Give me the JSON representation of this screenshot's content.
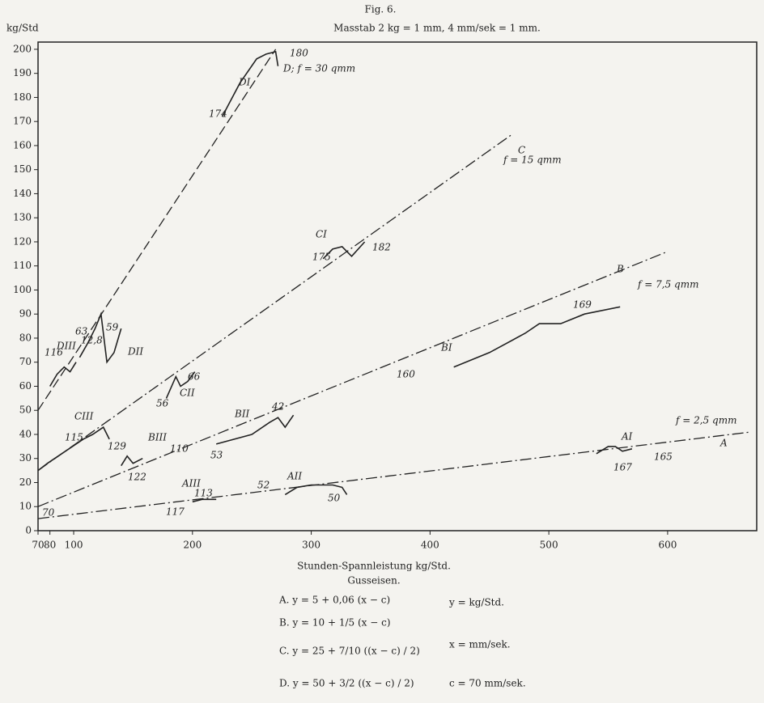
{
  "chart_data": {
    "type": "line",
    "title": "Fig. 6.",
    "subtitle": "Masstab 2 kg = 1 mm, 4 mm/sek = 1 mm.",
    "y_label": "kg/Std",
    "x_label": "Stunden-Spannleistung kg/Std.",
    "material": "Gusseisen.",
    "xlim": [
      70,
      675
    ],
    "ylim": [
      0,
      203
    ],
    "xticks": [
      70,
      80,
      100,
      200,
      300,
      400,
      500,
      600
    ],
    "yticks": [
      0,
      10,
      20,
      30,
      40,
      50,
      60,
      70,
      80,
      90,
      100,
      110,
      120,
      130,
      140,
      150,
      160,
      170,
      180,
      190,
      200
    ],
    "grid": false,
    "series": [
      {
        "name": "A",
        "color": "#222222",
        "dash": "dash-dot",
        "x": [
          70,
          670
        ],
        "values": [
          5,
          41
        ]
      },
      {
        "name": "B",
        "color": "#222222",
        "dash": "dash-dot",
        "x": [
          70,
          600
        ],
        "values": [
          10,
          116
        ]
      },
      {
        "name": "C",
        "color": "#222222",
        "dash": "dash-dot",
        "x": [
          70,
          470
        ],
        "values": [
          25,
          165
        ]
      },
      {
        "name": "D",
        "color": "#222222",
        "dash": "long-dash",
        "x": [
          70,
          270
        ],
        "values": [
          50,
          200
        ]
      },
      {
        "name": "AI",
        "color": "#222222",
        "dash": "solid",
        "x": [
          540,
          550,
          556,
          562,
          570
        ],
        "values": [
          32,
          35,
          35,
          33,
          34
        ]
      },
      {
        "name": "AII",
        "color": "#222222",
        "dash": "solid",
        "x": [
          278,
          288,
          300,
          318,
          326,
          330
        ],
        "values": [
          15,
          18,
          19,
          19,
          18,
          15
        ]
      },
      {
        "name": "AIII",
        "color": "#222222",
        "dash": "solid",
        "x": [
          200,
          208,
          220
        ],
        "values": [
          12,
          13,
          13
        ]
      },
      {
        "name": "BI",
        "color": "#222222",
        "dash": "solid",
        "x": [
          420,
          450,
          480,
          492,
          510,
          530,
          560
        ],
        "values": [
          68,
          74,
          82,
          86,
          86,
          90,
          93
        ]
      },
      {
        "name": "BII",
        "color": "#222222",
        "dash": "solid",
        "x": [
          220,
          250,
          265,
          272,
          278,
          285
        ],
        "values": [
          36,
          40,
          45,
          47,
          43,
          48
        ]
      },
      {
        "name": "BIII",
        "color": "#222222",
        "dash": "solid",
        "x": [
          140,
          145,
          150,
          158
        ],
        "values": [
          27,
          31,
          28,
          30
        ]
      },
      {
        "name": "CI",
        "color": "#222222",
        "dash": "solid",
        "x": [
          310,
          318,
          326,
          334,
          345
        ],
        "values": [
          113,
          117,
          118,
          114,
          120
        ]
      },
      {
        "name": "CII",
        "color": "#222222",
        "dash": "solid",
        "x": [
          178,
          186,
          190,
          196,
          202
        ],
        "values": [
          55,
          64,
          60,
          62,
          66
        ]
      },
      {
        "name": "CIII",
        "color": "#222222",
        "dash": "solid",
        "x": [
          70,
          78,
          108,
          116,
          125,
          130
        ],
        "values": [
          25,
          28,
          38,
          40,
          43,
          38
        ]
      },
      {
        "name": "DI",
        "color": "#222222",
        "dash": "solid",
        "x": [
          225,
          240,
          254,
          262,
          270,
          272
        ],
        "values": [
          172,
          186,
          196,
          198,
          199,
          193
        ]
      },
      {
        "name": "DII",
        "color": "#222222",
        "dash": "solid",
        "x": [
          105,
          112,
          118,
          123,
          128,
          134,
          140
        ],
        "values": [
          72,
          78,
          84,
          90,
          70,
          74,
          84
        ]
      },
      {
        "name": "DIII",
        "color": "#222222",
        "dash": "solid",
        "x": [
          80,
          86,
          92,
          97,
          102
        ],
        "values": [
          60,
          65,
          68,
          66,
          70
        ]
      }
    ],
    "annotations": [
      "70",
      "117",
      "113",
      "52",
      "50",
      "167",
      "165",
      "122",
      "110",
      "53",
      "42",
      "129",
      "115",
      "56",
      "66",
      "116",
      "12,8",
      "63",
      "59",
      "160",
      "169",
      "175",
      "182",
      "174",
      "180",
      "f = 2,5 qmm",
      "f = 7,5 qmm",
      "f = 15 qmm",
      "D; f = 30 qmm"
    ],
    "equations": [
      "A. y = 5 + 0,06 (x − c)",
      "B. y = 10 + 1/5 (x − c)",
      "C. y = 25 + 7/10 ((x − c) / 2)",
      "D. y = 50 + 3/2 ((x − c) / 2)"
    ],
    "definitions": [
      "y = kg/Std.",
      "x = mm/sek.",
      "c = 70 mm/sek."
    ]
  }
}
